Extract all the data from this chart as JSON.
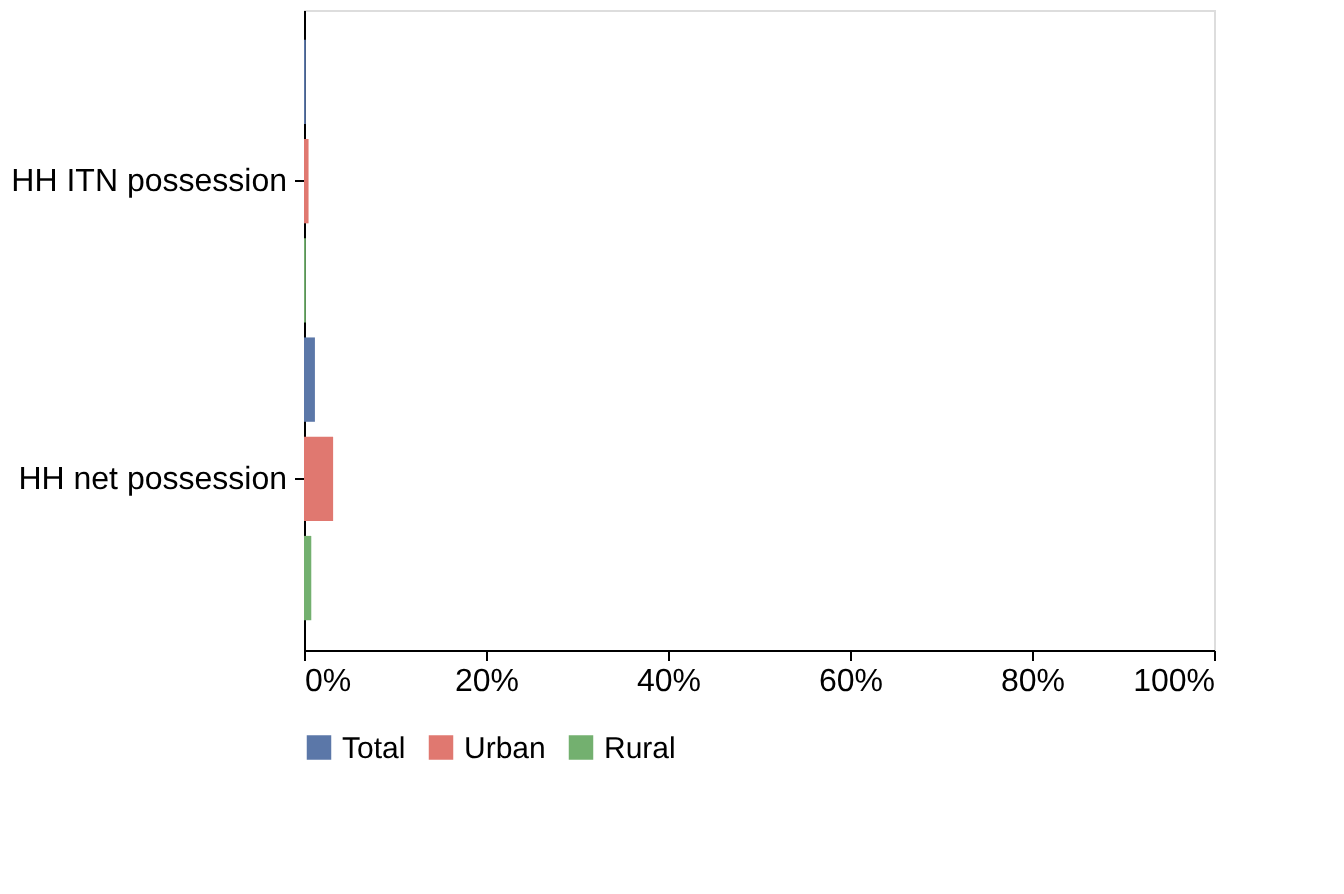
{
  "chart_data": {
    "type": "bar",
    "orientation": "horizontal",
    "categories": [
      "HH ITN possession",
      "HH net possession"
    ],
    "series": [
      {
        "name": "Total",
        "color": "#5b77a8",
        "values": [
          0.2,
          1.2
        ]
      },
      {
        "name": "Urban",
        "color": "#e07870",
        "values": [
          0.5,
          3.2
        ]
      },
      {
        "name": "Rural",
        "color": "#73b06f",
        "values": [
          0.2,
          0.8
        ]
      }
    ],
    "xlim": [
      0,
      100
    ],
    "xticks": [
      {
        "value": 0,
        "label": "0%"
      },
      {
        "value": 20,
        "label": "20%"
      },
      {
        "value": 40,
        "label": "40%"
      },
      {
        "value": 60,
        "label": "60%"
      },
      {
        "value": 80,
        "label": "80%"
      },
      {
        "value": 100,
        "label": "100%"
      }
    ],
    "grid": false,
    "legend": "bottom"
  }
}
